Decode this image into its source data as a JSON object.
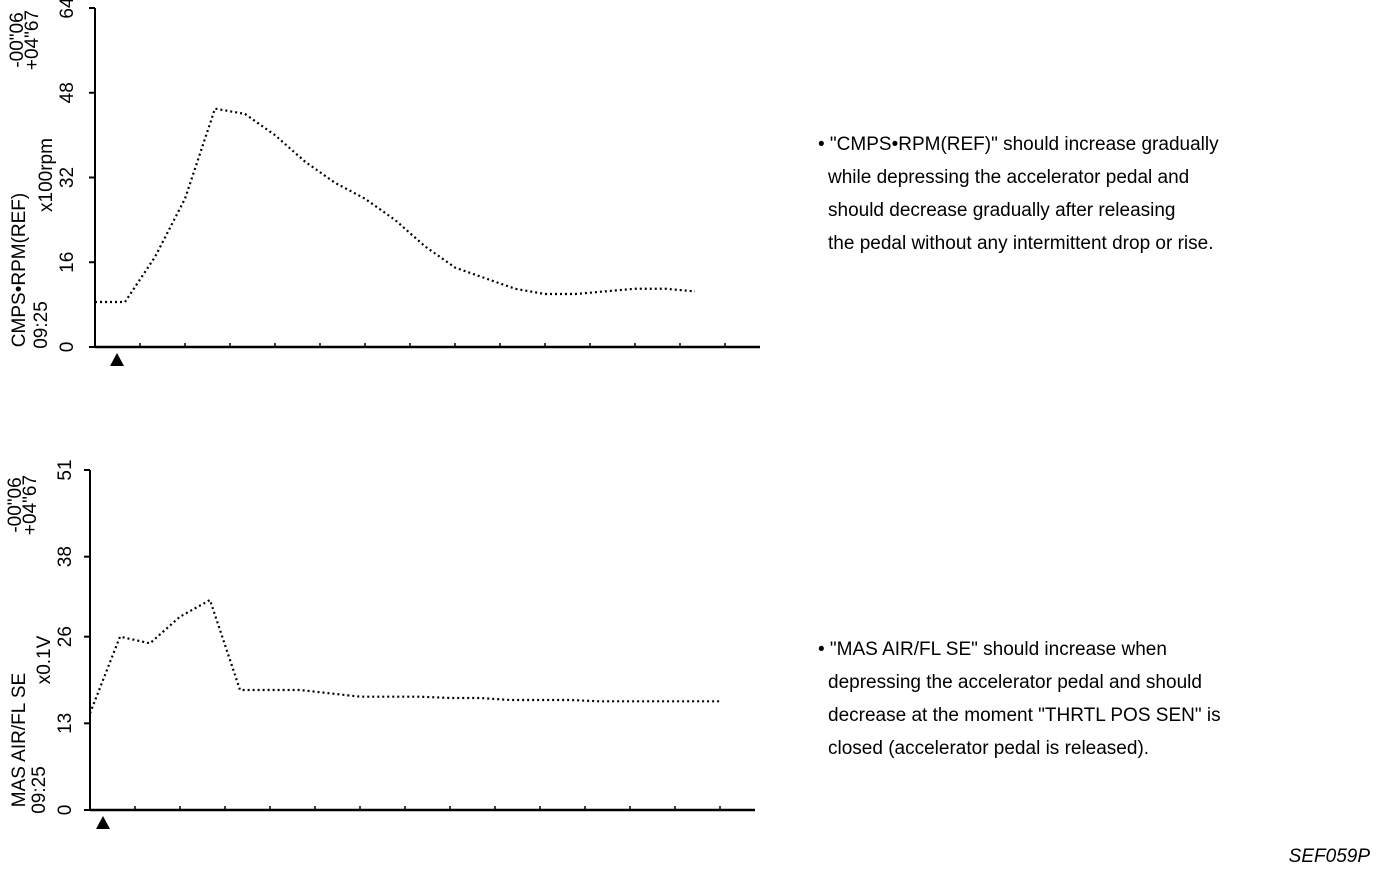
{
  "chart_data": [
    {
      "type": "line",
      "ylabel": "CMPS•RPM(REF)",
      "unit": "x100rpm",
      "time": "09:25",
      "time_offsets": [
        "-00\"06",
        "+04\"67"
      ],
      "values": [
        8.5,
        8.5,
        17,
        28,
        45,
        44,
        40,
        35,
        31,
        28,
        24,
        19,
        15,
        13,
        11,
        10,
        10,
        10.5,
        11,
        11,
        10.5
      ],
      "color": "#000000",
      "ylim": [
        0,
        64
      ],
      "yticks": [
        0,
        16,
        32,
        48,
        64
      ],
      "note": [
        "• \"CMPS•RPM(REF)\" should increase gradually",
        "while depressing the accelerator pedal and",
        "should decrease gradually after releasing",
        "the pedal without any intermittent drop or rise."
      ]
    },
    {
      "type": "line",
      "ylabel": "MAS AIR/FL SE",
      "unit": "x0.1V",
      "time": "09:25",
      "time_offsets": [
        "-00\"06",
        "+04\"67"
      ],
      "values": [
        14.5,
        26,
        25,
        29,
        31.5,
        18,
        18,
        18,
        17.5,
        17,
        17,
        17,
        16.8,
        16.8,
        16.5,
        16.5,
        16.5,
        16.3,
        16.3,
        16.3,
        16.3,
        16.3
      ],
      "color": "#000000",
      "ylim": [
        0,
        51
      ],
      "yticks": [
        0,
        13,
        26,
        38,
        51
      ],
      "note": [
        "• \"MAS AIR/FL SE\" should increase when",
        "depressing the accelerator pedal and should",
        "decrease at the moment \"THRTL POS SEN\" is",
        "closed (accelerator pedal is released)."
      ]
    }
  ],
  "figure_id": "SEF059P"
}
